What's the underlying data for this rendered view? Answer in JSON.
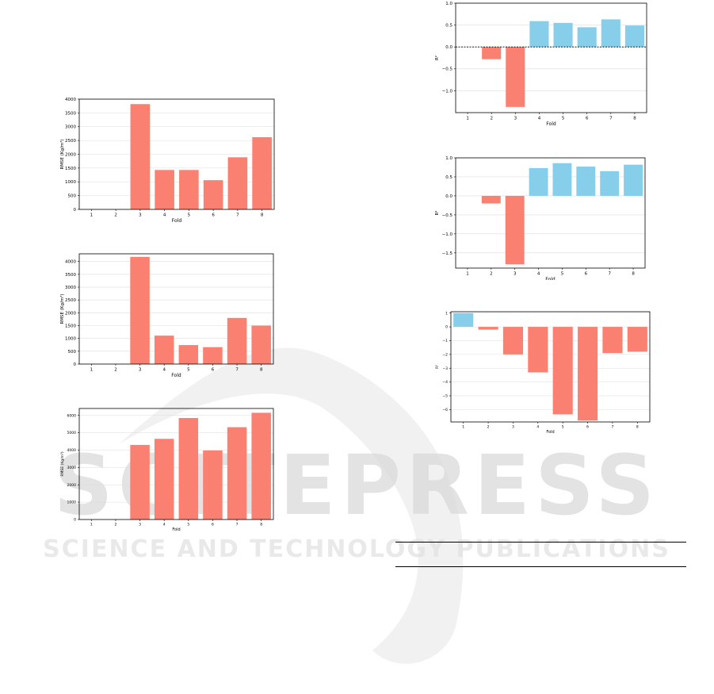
{
  "watermark": {
    "line1": "SCITEPRESS",
    "line2": "SCIENCE AND TECHNOLOGY PUBLICATIONS"
  },
  "colors": {
    "negative": "#fa8072",
    "positive": "#87ceeb",
    "grid": "#dddddd"
  },
  "chart_data": [
    {
      "type": "bar",
      "xlabel": "Fold",
      "ylabel": "RMSE (Kg/m³)",
      "categories": [
        "1",
        "2",
        "3",
        "4",
        "5",
        "6",
        "7",
        "8"
      ],
      "values": [
        0,
        0,
        3820,
        1430,
        1430,
        1060,
        1890,
        2620
      ],
      "ylim": [
        0,
        4000
      ],
      "yticks": [
        0,
        500,
        1000,
        1500,
        2000,
        2500,
        3000,
        3500,
        4000
      ],
      "grid": true
    },
    {
      "type": "bar",
      "xlabel": "Fold",
      "ylabel": "RMSE (Kg/m³)",
      "categories": [
        "1",
        "2",
        "3",
        "4",
        "5",
        "6",
        "7",
        "8"
      ],
      "values": [
        0,
        0,
        4180,
        1110,
        740,
        660,
        1800,
        1500
      ],
      "ylim": [
        0,
        4300
      ],
      "yticks": [
        0,
        500,
        1000,
        1500,
        2000,
        2500,
        3000,
        3500,
        4000
      ],
      "grid": true
    },
    {
      "type": "bar",
      "xlabel": "Fold",
      "ylabel": "RMSE (Kg/m³)",
      "categories": [
        "1",
        "2",
        "3",
        "4",
        "5",
        "6",
        "7",
        "8"
      ],
      "values": [
        0,
        0,
        4300,
        4650,
        5850,
        3980,
        5320,
        6150
      ],
      "ylim": [
        0,
        6400
      ],
      "yticks": [
        0,
        1000,
        2000,
        3000,
        4000,
        5000,
        6000
      ],
      "grid": true
    },
    {
      "type": "bar",
      "xlabel": "Fold",
      "ylabel": "R²",
      "categories": [
        "1",
        "2",
        "3",
        "4",
        "5",
        "6",
        "7",
        "8"
      ],
      "values": [
        0,
        -0.28,
        -1.37,
        0.59,
        0.55,
        0.45,
        0.63,
        0.49
      ],
      "ylim": [
        -1.5,
        1.0
      ],
      "yticks": [
        -1.0,
        -0.5,
        0.0,
        0.5,
        1.0
      ],
      "ytick_labels": [
        "−1.0",
        "−0.5",
        "0.0",
        "0.5",
        "1.0"
      ],
      "zero_line": true,
      "grid": true
    },
    {
      "type": "bar",
      "xlabel": "Fold",
      "ylabel": "R²",
      "categories": [
        "1",
        "2",
        "3",
        "4",
        "5",
        "6",
        "7",
        "8"
      ],
      "values": [
        0,
        -0.2,
        -1.8,
        0.73,
        0.86,
        0.77,
        0.65,
        0.82
      ],
      "ylim": [
        -1.9,
        1.0
      ],
      "yticks": [
        -1.5,
        -1.0,
        -0.5,
        0.0,
        0.5,
        1.0
      ],
      "ytick_labels": [
        "−1.5",
        "−1.0",
        "−0.5",
        "0.0",
        "0.5",
        "1.0"
      ],
      "grid": true
    },
    {
      "type": "bar",
      "xlabel": "Fold",
      "ylabel": "R²",
      "categories": [
        "1",
        "2",
        "3",
        "4",
        "5",
        "6",
        "7",
        "8"
      ],
      "values": [
        1.0,
        -0.2,
        -2.0,
        -3.3,
        -6.35,
        -6.8,
        -1.9,
        -1.8
      ],
      "ylim": [
        -6.9,
        1.1
      ],
      "yticks": [
        -6,
        -5,
        -4,
        -3,
        -2,
        -1,
        0,
        1
      ],
      "ytick_labels": [
        "−6",
        "−5",
        "−4",
        "−3",
        "−2",
        "−1",
        "0",
        "1"
      ],
      "grid": true
    }
  ]
}
